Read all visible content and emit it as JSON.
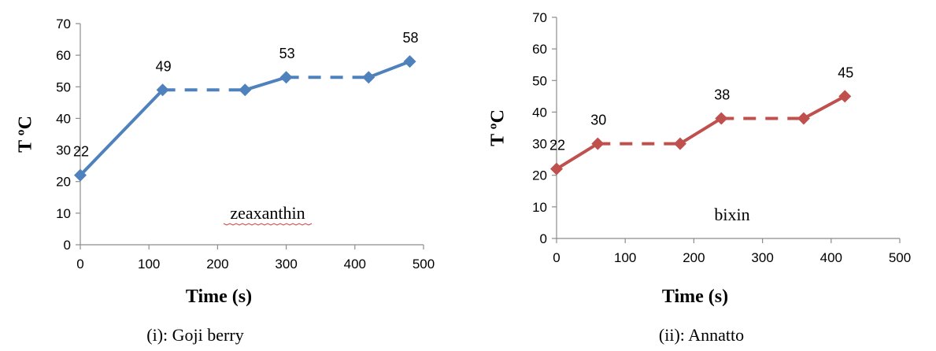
{
  "chart_data": [
    {
      "type": "line",
      "caption": "(i): Goji berry",
      "annotation": "zeaxanthin",
      "xlabel": "Time (s)",
      "ylabel": "T ºC",
      "xlim": [
        0,
        500
      ],
      "ylim": [
        0,
        70
      ],
      "xticks": [
        "0",
        "100",
        "200",
        "300",
        "400",
        "500"
      ],
      "yticks": [
        "0",
        "10",
        "20",
        "30",
        "40",
        "50",
        "60",
        "70"
      ],
      "color": "#4f81bd",
      "grid": false,
      "series": [
        {
          "x": [
            0,
            120,
            240,
            300,
            420,
            480
          ],
          "y": [
            22,
            49,
            49,
            53,
            53,
            58
          ],
          "segment_styles": [
            "solid",
            "dashed",
            "solid",
            "dashed",
            "solid"
          ],
          "data_labels": [
            "22",
            "49",
            "",
            "53",
            "",
            "58"
          ]
        }
      ]
    },
    {
      "type": "line",
      "caption": "(ii): Annatto",
      "annotation": "bixin",
      "xlabel": "Time (s)",
      "ylabel": "T ºC",
      "xlim": [
        0,
        500
      ],
      "ylim": [
        0,
        70
      ],
      "xticks": [
        "0",
        "100",
        "200",
        "300",
        "400",
        "500"
      ],
      "yticks": [
        "0",
        "10",
        "20",
        "30",
        "40",
        "50",
        "60",
        "70"
      ],
      "color": "#c0504d",
      "grid": false,
      "series": [
        {
          "x": [
            0,
            60,
            180,
            240,
            360,
            420
          ],
          "y": [
            22,
            30,
            30,
            38,
            38,
            45
          ],
          "segment_styles": [
            "solid",
            "dashed",
            "solid",
            "dashed",
            "solid"
          ],
          "data_labels": [
            "22",
            "30",
            "",
            "38",
            "",
            "45"
          ]
        }
      ]
    }
  ]
}
